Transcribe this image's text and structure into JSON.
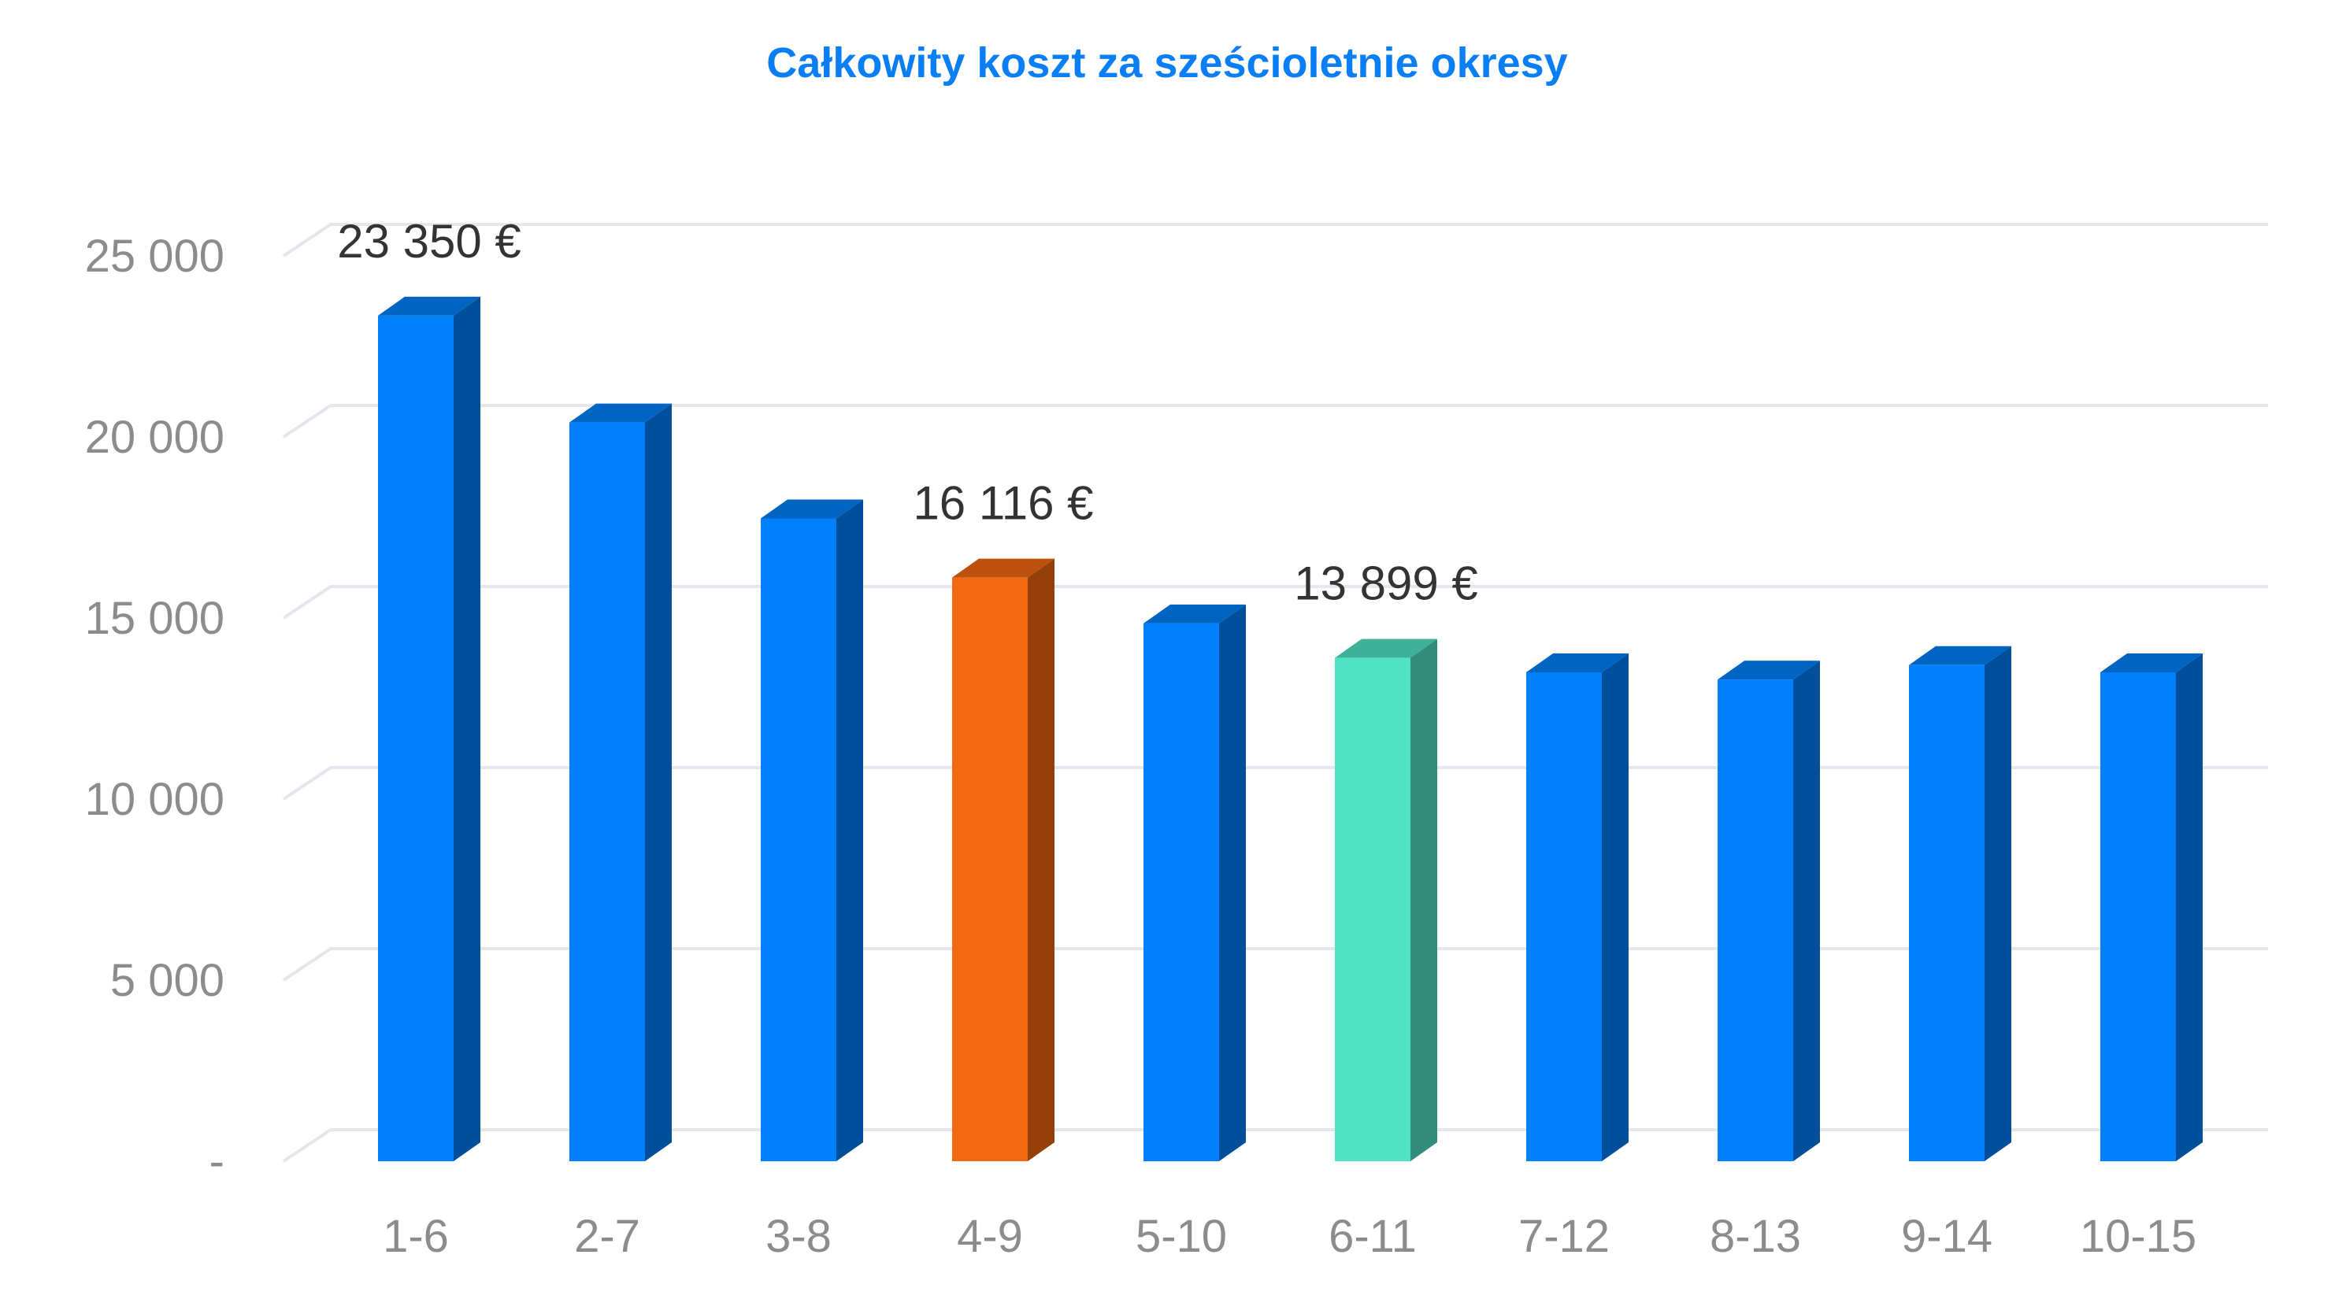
{
  "chart_data": {
    "type": "bar",
    "title": "Całkowity koszt za sześcioletnie okresy",
    "xlabel": "",
    "ylabel": "",
    "categories": [
      "1-6",
      "2-7",
      "3-8",
      "4-9",
      "5-10",
      "6-11",
      "7-12",
      "8-13",
      "9-14",
      "10-15"
    ],
    "values": [
      23350,
      20400,
      17750,
      16116,
      14850,
      13899,
      13500,
      13300,
      13700,
      13500
    ],
    "ylim": [
      0,
      25000
    ],
    "y_ticks": [
      {
        "value": 0,
        "label": "-"
      },
      {
        "value": 5000,
        "label": "5 000"
      },
      {
        "value": 10000,
        "label": "10 000"
      },
      {
        "value": 15000,
        "label": "15 000"
      },
      {
        "value": 20000,
        "label": "20 000"
      },
      {
        "value": 25000,
        "label": "25 000"
      }
    ],
    "data_labels": [
      {
        "index": 0,
        "text": "23 350 €"
      },
      {
        "index": 3,
        "text": "16 116 €"
      },
      {
        "index": 5,
        "text": "13 899 €"
      }
    ],
    "bar_colors": [
      "#0080fa",
      "#0080fa",
      "#0080fa",
      "#f0680f",
      "#0080fa",
      "#4fe3c3",
      "#0080fa",
      "#0080fa",
      "#0080fa",
      "#0080fa"
    ],
    "grid": true,
    "legend": "none",
    "style": "3d-column"
  }
}
